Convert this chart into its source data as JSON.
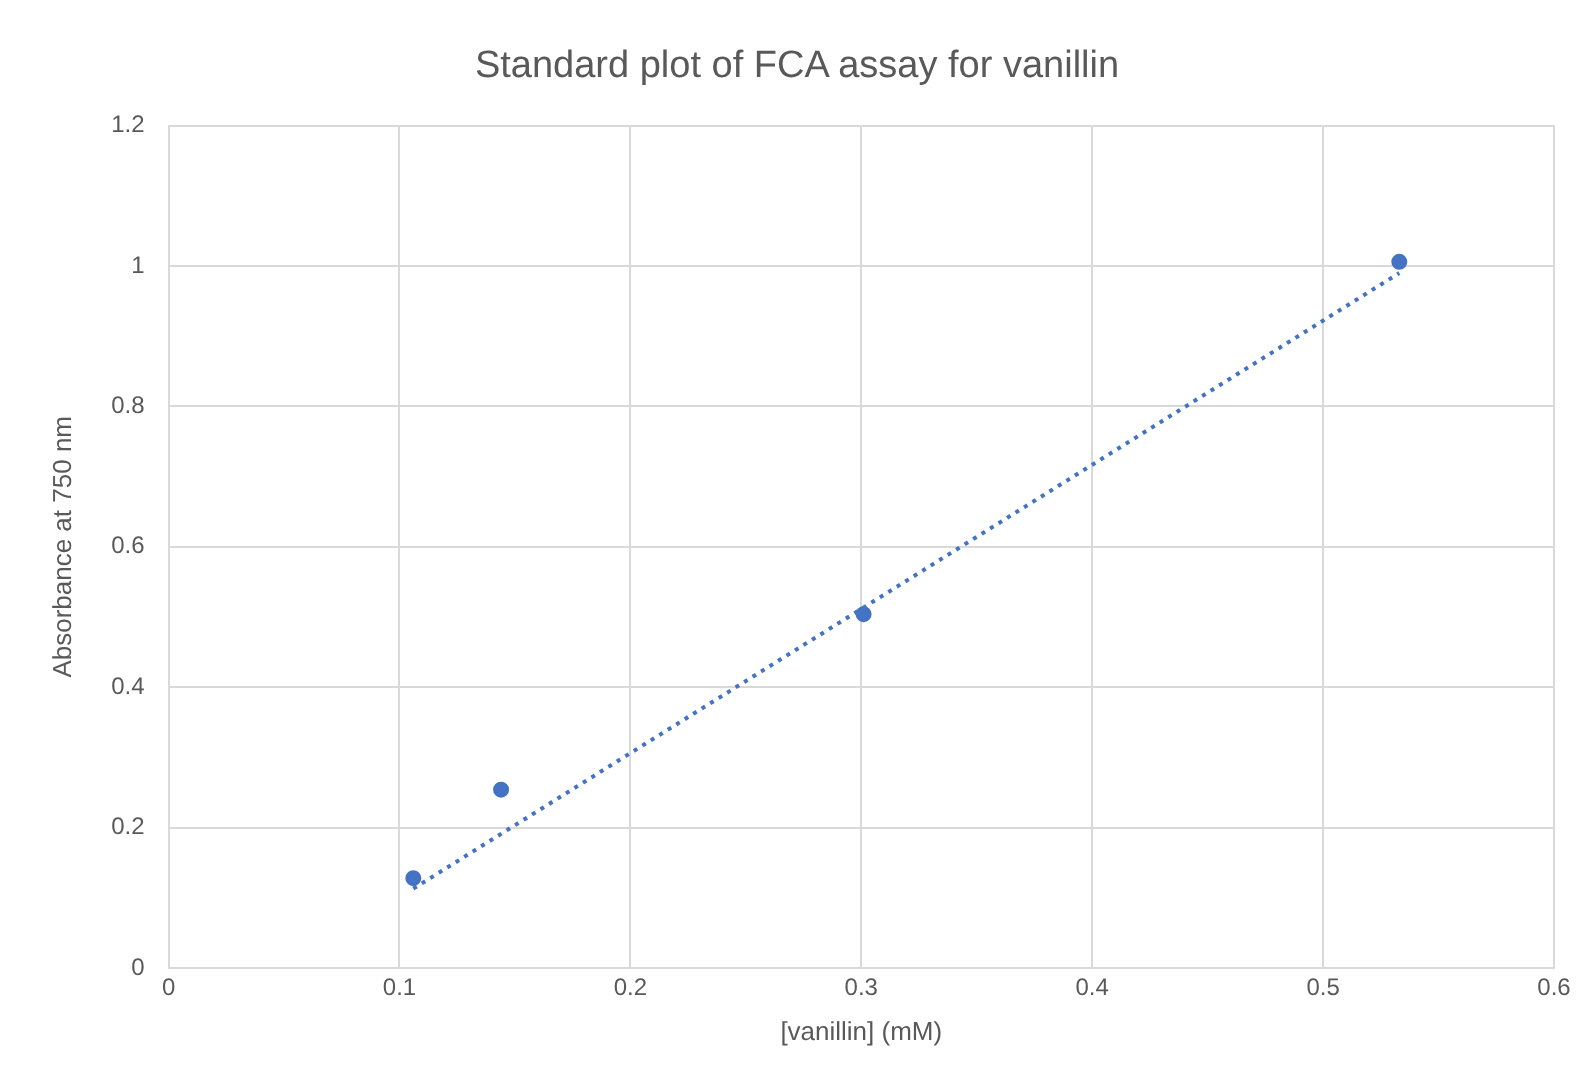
{
  "chart_data": {
    "type": "scatter",
    "title": "Standard plot of FCA assay for vanillin",
    "xlabel": "[vanillin] (mM)",
    "ylabel": "Absorbance at 750 nm",
    "series": [
      {
        "color": "#4472c4",
        "x": [
          0.106,
          0.144,
          0.301,
          0.533
        ],
        "values": [
          0.128,
          0.254,
          0.504,
          1.006
        ],
        "marker": "circle"
      },
      {
        "type": "line",
        "color": "#4472c4",
        "x": [
          0.106,
          0.533
        ],
        "values": [
          0.113,
          0.99
        ],
        "line_style": "dotted",
        "marker": "none"
      }
    ],
    "xlim": [
      0,
      0.6
    ],
    "xticks": [
      0,
      0.1,
      0.2,
      0.3,
      0.4,
      0.5,
      0.6
    ],
    "ylim": [
      0,
      1.2
    ],
    "yticks": [
      0,
      0.2,
      0.4,
      0.6,
      0.8,
      1,
      1.2
    ],
    "grid": true,
    "legend": false
  }
}
